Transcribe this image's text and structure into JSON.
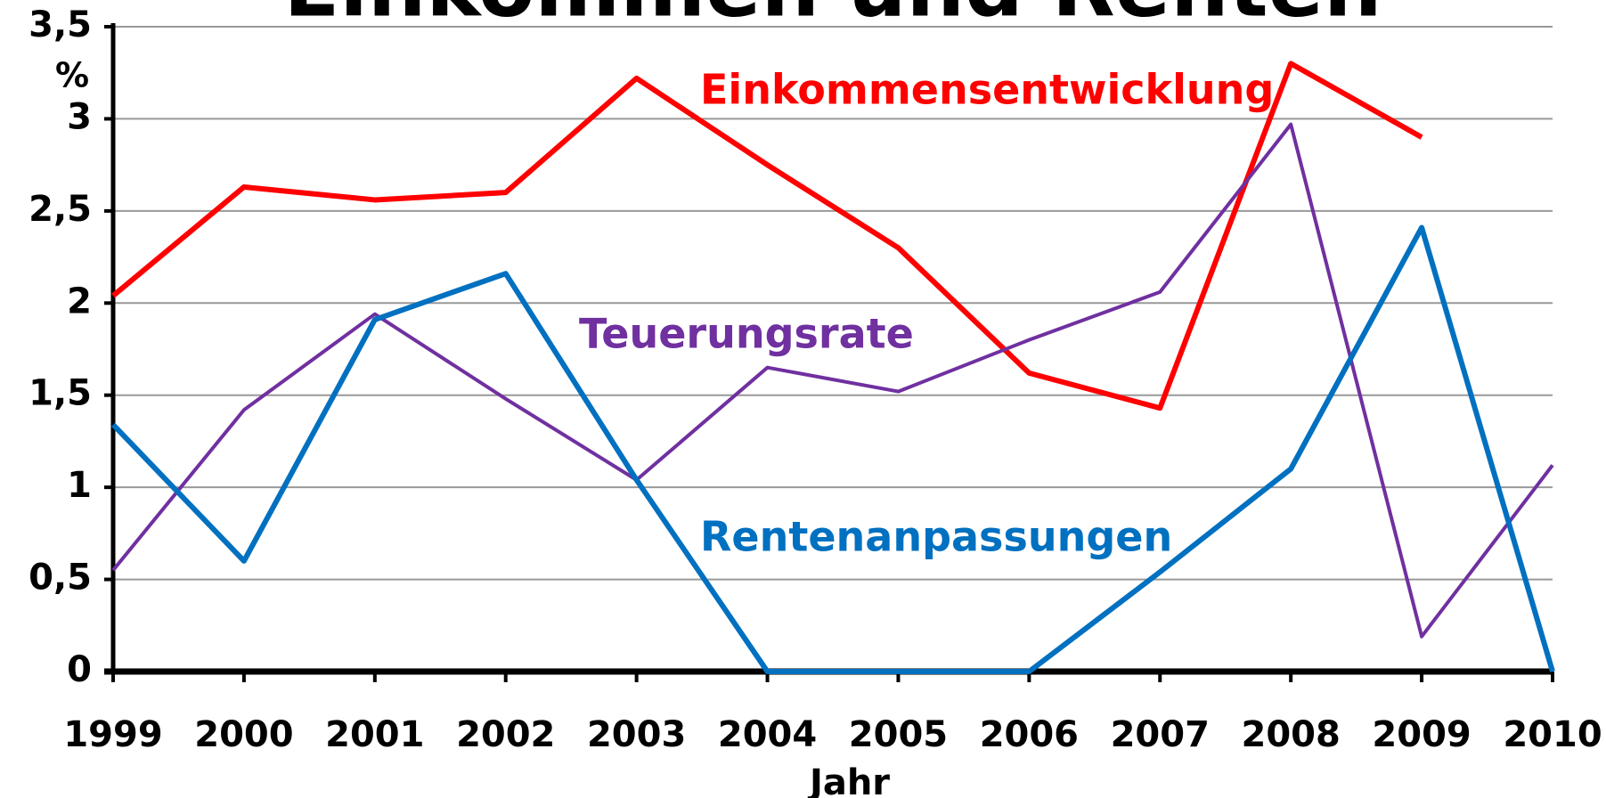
{
  "chart_data": {
    "type": "line",
    "title": "Einkommen und Renten",
    "y_unit": "%",
    "x_label": "Jahr",
    "categories": [
      "1999",
      "2000",
      "2001",
      "2002",
      "2003",
      "2004",
      "2005",
      "2006",
      "2007",
      "2008",
      "2009",
      "2010"
    ],
    "series": [
      {
        "name": "Einkommensentwicklung",
        "color": "#ff0000",
        "values": [
          2.04,
          2.63,
          2.56,
          2.6,
          3.22,
          2.75,
          2.3,
          1.62,
          1.43,
          3.3,
          2.9,
          null
        ]
      },
      {
        "name": "Teuerungsrate",
        "color": "#7030a0",
        "values": [
          0.55,
          1.42,
          1.94,
          1.48,
          1.04,
          1.65,
          1.52,
          1.8,
          2.06,
          2.97,
          0.19,
          1.12
        ]
      },
      {
        "name": "Rentenanpassungen",
        "color": "#0070c0",
        "values": [
          1.34,
          0.6,
          1.91,
          2.16,
          1.04,
          0,
          0,
          0,
          0.54,
          1.1,
          2.41,
          0
        ]
      }
    ],
    "ylim": [
      0,
      3.5
    ],
    "yticks": [
      0,
      {
        "value": 0.5,
        "label": "0,5"
      },
      1,
      {
        "value": 1.5,
        "label": "1,5"
      },
      2,
      {
        "value": 2.5,
        "label": "2,5"
      },
      3,
      {
        "value": 3.5,
        "label": "3,5"
      }
    ],
    "grid": true
  }
}
